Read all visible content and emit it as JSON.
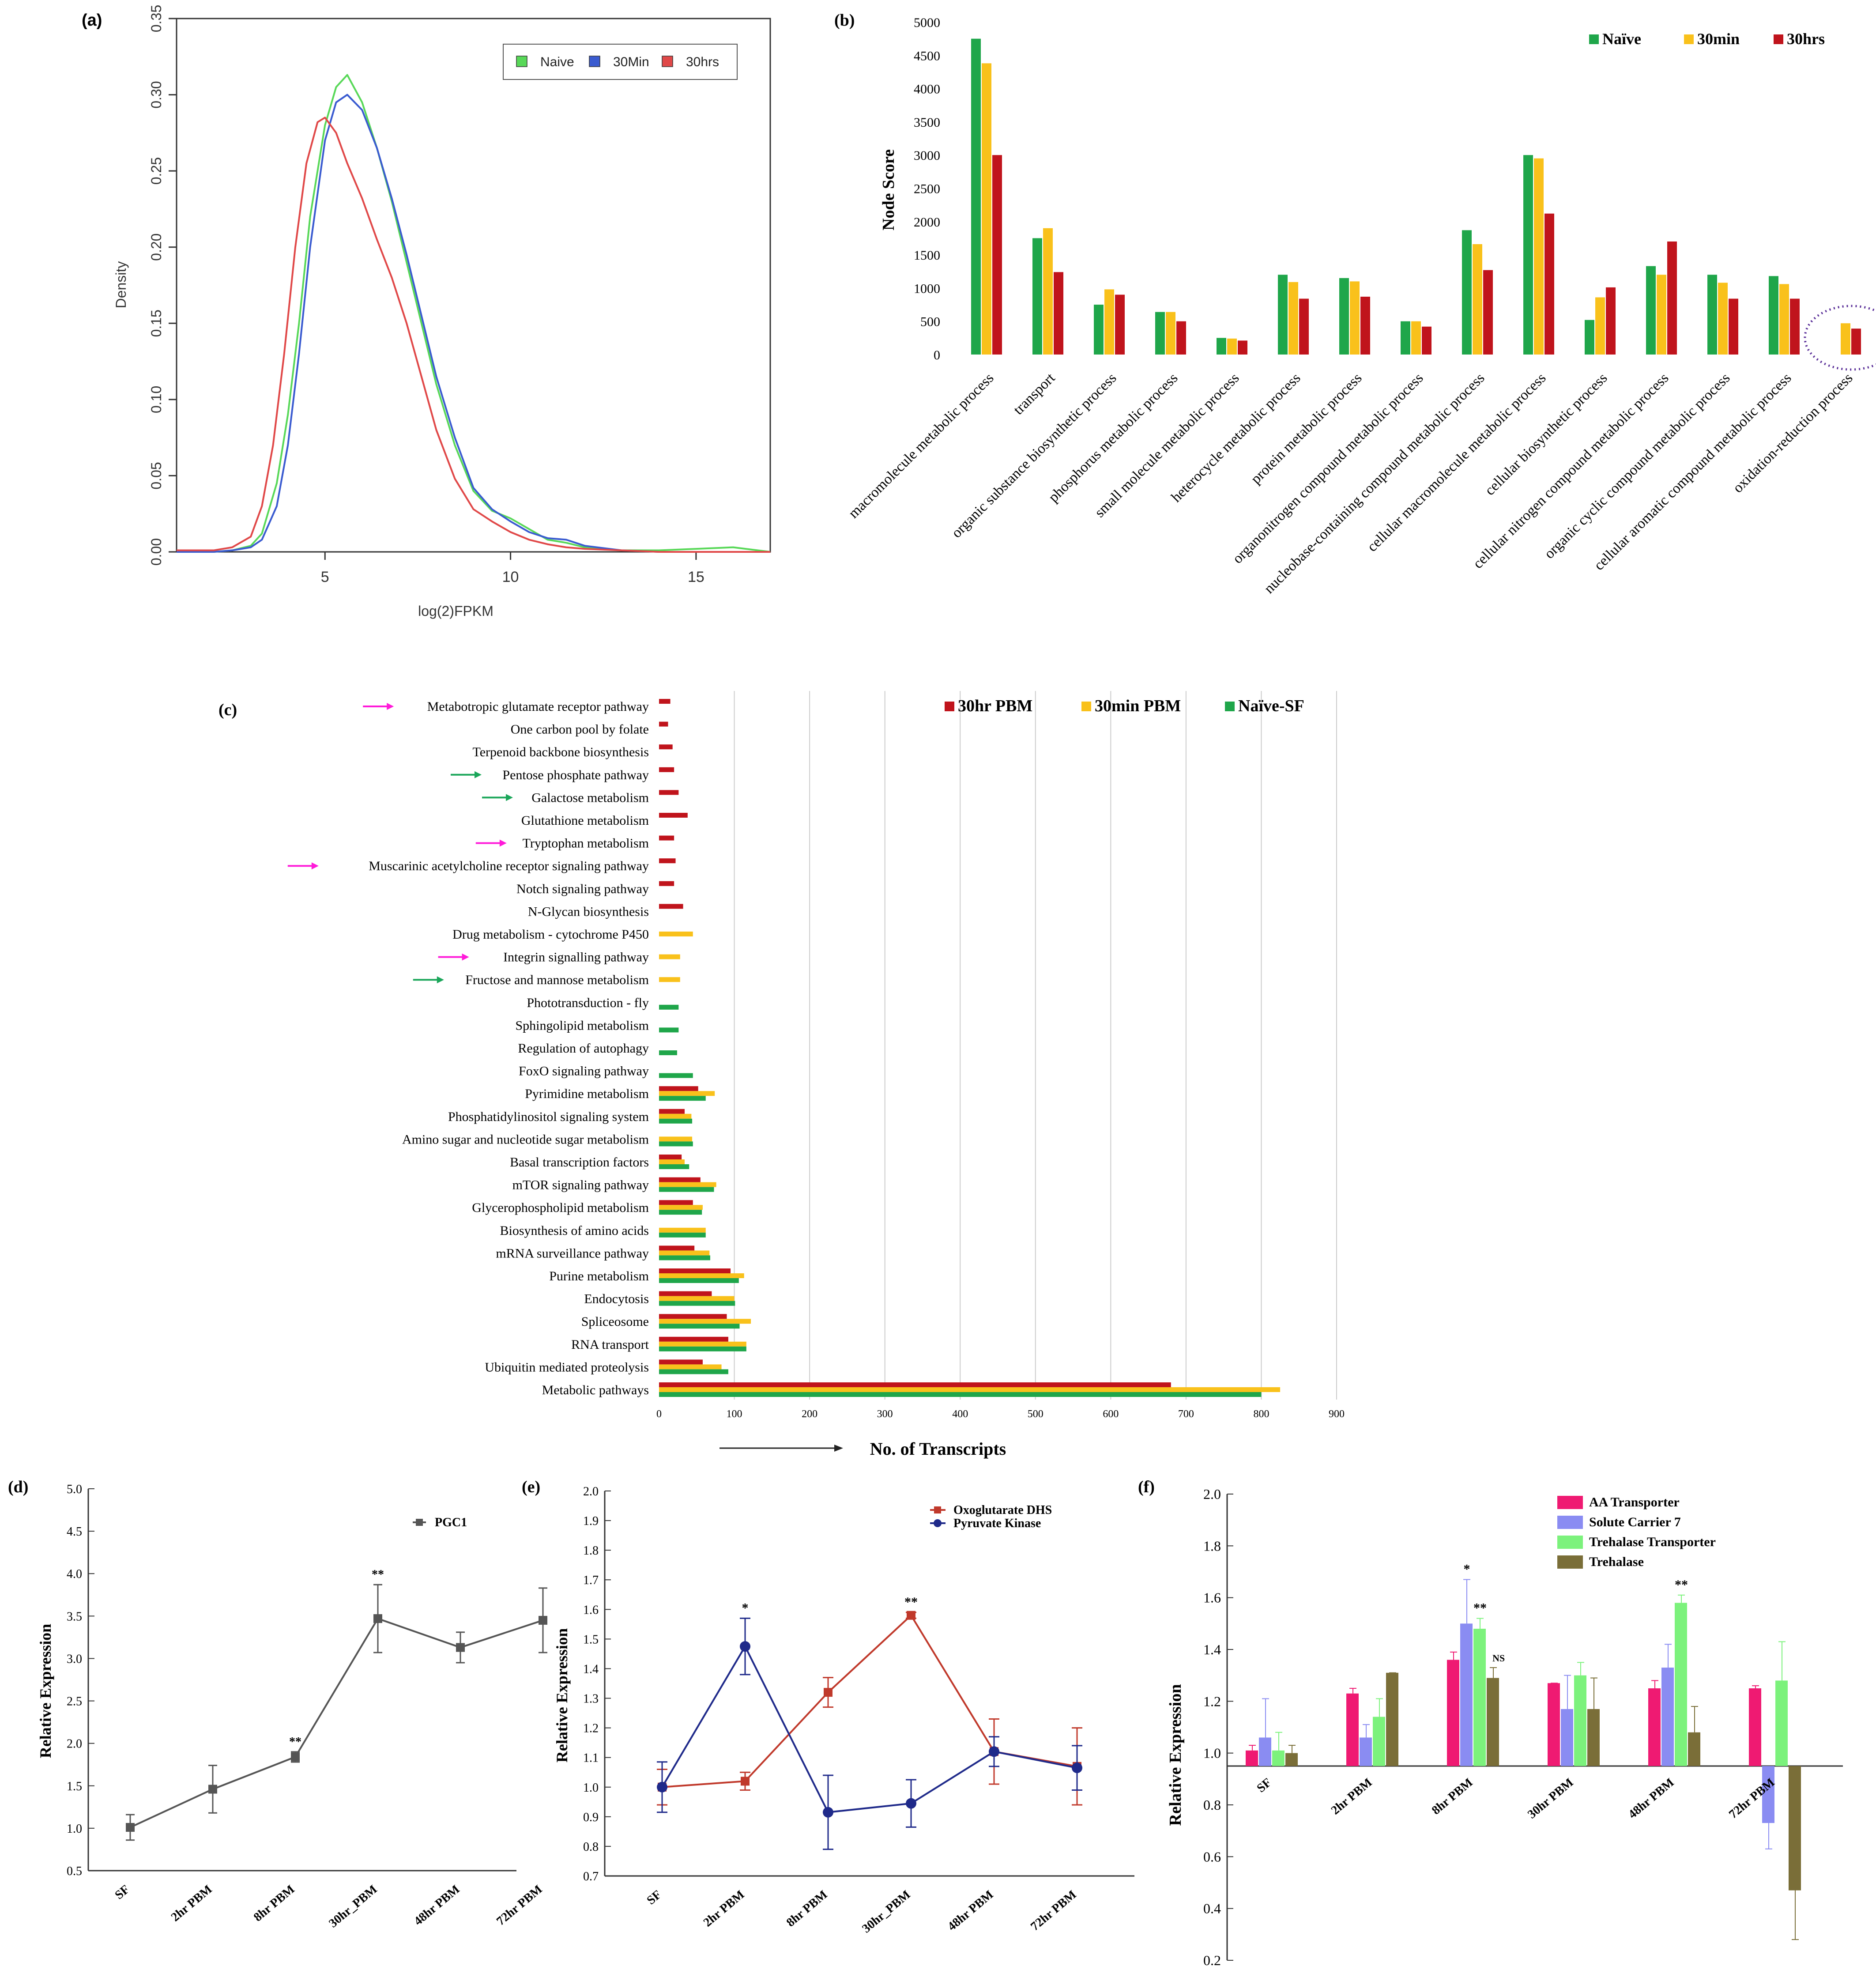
{
  "colors": {
    "green": "#1fa64a",
    "yellow": "#f9c11b",
    "red": "#c0141c",
    "ltgreen": "#58d858",
    "blue": "#3a5bd0",
    "dred": "#e04848",
    "grey": "#555555",
    "oxo": "#c0392b",
    "pyr": "#1f2a8a",
    "pink": "#ef1a72",
    "lav": "#8a8cf2",
    "lgreen": "#7cf27c",
    "olive": "#7a6e38",
    "magenta": "#ff1ad9",
    "arrowgreen": "#1ba65a"
  },
  "chart_data": [
    {
      "id": "a",
      "panel_label": "(a)",
      "type": "line",
      "xlabel": "log(2)FPKM",
      "ylabel": "Density",
      "xlim": [
        1,
        17
      ],
      "ylim": [
        0,
        0.35
      ],
      "xticks": [
        5,
        10,
        15
      ],
      "yticks": [
        "0.00",
        "0.05",
        "0.10",
        "0.15",
        "0.20",
        "0.25",
        "0.30",
        "0.35"
      ],
      "legend": [
        "Naive",
        "30Min",
        "30hrs"
      ],
      "series": [
        {
          "name": "Naive",
          "x": [
            1,
            2,
            2.5,
            3,
            3.3,
            3.7,
            4,
            4.3,
            4.6,
            5,
            5.3,
            5.6,
            6,
            6.4,
            6.8,
            7.2,
            7.6,
            8,
            8.5,
            9,
            9.5,
            10,
            10.5,
            11,
            11.5,
            12,
            13,
            14,
            15,
            16,
            17
          ],
          "y": [
            0,
            0,
            0.001,
            0.004,
            0.012,
            0.045,
            0.09,
            0.15,
            0.22,
            0.28,
            0.305,
            0.313,
            0.295,
            0.265,
            0.23,
            0.19,
            0.15,
            0.11,
            0.07,
            0.04,
            0.027,
            0.022,
            0.015,
            0.008,
            0.006,
            0.003,
            0.001,
            0.001,
            0.002,
            0.003,
            0
          ]
        },
        {
          "name": "30Min",
          "x": [
            1,
            2,
            2.5,
            3,
            3.3,
            3.7,
            4,
            4.3,
            4.6,
            5,
            5.3,
            5.6,
            6,
            6.4,
            6.8,
            7.2,
            7.6,
            8,
            8.5,
            9,
            9.5,
            10,
            10.5,
            11,
            11.5,
            12,
            13,
            14,
            15,
            16,
            17
          ],
          "y": [
            0,
            0,
            0.001,
            0.003,
            0.008,
            0.03,
            0.07,
            0.13,
            0.2,
            0.27,
            0.295,
            0.3,
            0.29,
            0.265,
            0.232,
            0.195,
            0.155,
            0.115,
            0.075,
            0.042,
            0.028,
            0.02,
            0.013,
            0.009,
            0.008,
            0.004,
            0.001,
            0,
            0,
            0,
            0
          ]
        },
        {
          "name": "30hrs",
          "x": [
            1,
            2,
            2.5,
            3,
            3.3,
            3.6,
            3.9,
            4.2,
            4.5,
            4.8,
            5,
            5.3,
            5.6,
            6,
            6.4,
            6.8,
            7.2,
            7.6,
            8,
            8.5,
            9,
            9.5,
            10,
            10.5,
            11,
            11.5,
            12,
            13,
            14,
            15,
            16,
            17
          ],
          "y": [
            0.001,
            0.001,
            0.003,
            0.01,
            0.03,
            0.07,
            0.13,
            0.2,
            0.255,
            0.282,
            0.285,
            0.275,
            0.255,
            0.232,
            0.205,
            0.18,
            0.15,
            0.115,
            0.08,
            0.048,
            0.028,
            0.02,
            0.013,
            0.008,
            0.005,
            0.003,
            0.002,
            0.001,
            0,
            0,
            0,
            0
          ]
        }
      ]
    },
    {
      "id": "b",
      "panel_label": "(b)",
      "type": "bar",
      "ylabel": "Node Score",
      "ylim": [
        0,
        5000
      ],
      "yticks": [
        0,
        500,
        1000,
        1500,
        2000,
        2500,
        3000,
        3500,
        4000,
        4500,
        5000
      ],
      "categories": [
        "macromolecule metabolic process",
        "transport",
        "organic substance biosynthetic process",
        "phosphorus metabolic process",
        "small molecule metabolic process",
        "heterocycle metabolic process",
        "protein metabolic process",
        "organonitrogen compound metabolic process",
        "nucleobase-containing compound metabolic process",
        "cellular macromolecule metabolic process",
        "cellular biosynthetic process",
        "cellular nitrogen compound metabolic process",
        "organic cyclic compound metabolic process",
        "cellular aromatic compound metabolic process",
        "oxidation-reduction process"
      ],
      "series": [
        {
          "name": "Naïve",
          "values": [
            4750,
            1750,
            750,
            640,
            250,
            1200,
            1150,
            500,
            1870,
            3000,
            520,
            1330,
            1200,
            1180,
            0
          ]
        },
        {
          "name": "30min",
          "values": [
            4380,
            1900,
            980,
            640,
            240,
            1090,
            1100,
            500,
            1660,
            2950,
            860,
            1200,
            1080,
            1060,
            470
          ]
        },
        {
          "name": "30hrs",
          "values": [
            3000,
            1240,
            900,
            500,
            210,
            840,
            870,
            420,
            1270,
            2120,
            1010,
            1700,
            840,
            840,
            390
          ]
        }
      ]
    },
    {
      "id": "c",
      "panel_label": "(c)",
      "type": "bar",
      "xlabel": "No. of Transcripts",
      "xlim": [
        0,
        900
      ],
      "xticks": [
        0,
        100,
        200,
        300,
        400,
        500,
        600,
        700,
        800,
        900
      ],
      "legend": [
        "30hr PBM",
        "30min PBM",
        "Naïve-SF"
      ],
      "categories": [
        "Metabotropic glutamate receptor pathway",
        "One carbon pool by folate",
        "Terpenoid backbone biosynthesis",
        "Pentose phosphate pathway",
        "Galactose metabolism",
        "Glutathione metabolism",
        "Tryptophan metabolism",
        "Muscarinic acetylcholine receptor signaling pathway",
        "Notch signaling pathway",
        "N-Glycan biosynthesis",
        "Drug metabolism - cytochrome P450",
        "Integrin signalling pathway",
        "Fructose and mannose metabolism",
        "Phototransduction - fly",
        "Sphingolipid metabolism",
        "Regulation of autophagy",
        "FoxO signaling pathway",
        "Pyrimidine metabolism",
        "Phosphatidylinositol signaling system",
        "Amino sugar and nucleotide sugar metabolism",
        "Basal transcription factors",
        "mTOR signaling pathway",
        "Glycerophospholipid metabolism",
        "Biosynthesis of amino acids",
        "mRNA surveillance pathway",
        "Purine metabolism",
        "Endocytosis",
        "Spliceosome",
        "RNA transport",
        "Ubiquitin mediated proteolysis",
        "Metabolic pathways"
      ],
      "arrows": [
        "magenta",
        null,
        null,
        "green",
        "green",
        null,
        "magenta",
        "magenta",
        null,
        null,
        null,
        "magenta",
        "green",
        null,
        null,
        null,
        null,
        null,
        null,
        null,
        null,
        null,
        null,
        null,
        null,
        null,
        null,
        null,
        null,
        null,
        null
      ],
      "series": [
        {
          "name": "30hr PBM",
          "values": [
            15,
            12,
            18,
            20,
            26,
            38,
            20,
            22,
            20,
            32,
            0,
            0,
            0,
            0,
            0,
            0,
            0,
            52,
            34,
            0,
            30,
            55,
            45,
            0,
            47,
            95,
            70,
            90,
            92,
            58,
            680
          ]
        },
        {
          "name": "30min PBM",
          "values": [
            0,
            0,
            0,
            0,
            0,
            0,
            0,
            0,
            0,
            0,
            45,
            28,
            28,
            0,
            0,
            0,
            0,
            74,
            43,
            44,
            34,
            76,
            58,
            62,
            67,
            113,
            100,
            122,
            116,
            83,
            825
          ]
        },
        {
          "name": "Naïve-SF",
          "values": [
            0,
            0,
            0,
            0,
            0,
            0,
            0,
            0,
            0,
            0,
            0,
            0,
            0,
            26,
            26,
            24,
            45,
            62,
            44,
            45,
            40,
            73,
            57,
            62,
            68,
            106,
            101,
            107,
            116,
            92,
            800
          ]
        }
      ]
    },
    {
      "id": "d",
      "panel_label": "(d)",
      "type": "line",
      "ylabel": "Relative Expression",
      "ylim": [
        0.5,
        5.0
      ],
      "yticks": [
        "0.5",
        "1.0",
        "1.5",
        "2.0",
        "2.5",
        "3.0",
        "3.5",
        "4.0",
        "4.5",
        "5.0"
      ],
      "categories": [
        "SF",
        "2hr PBM",
        "8hr PBM",
        "30hr_PBM",
        "48hr PBM",
        "72hr PBM"
      ],
      "legend": [
        "PGC1"
      ],
      "series": [
        {
          "name": "PGC1",
          "values": [
            1.01,
            1.46,
            1.84,
            3.47,
            3.13,
            3.45
          ],
          "err": [
            0.15,
            0.28,
            0.06,
            0.4,
            0.18,
            0.38
          ],
          "sig": [
            "",
            "",
            "**",
            "**",
            "",
            ""
          ]
        }
      ]
    },
    {
      "id": "e",
      "panel_label": "(e)",
      "type": "line",
      "ylabel": "Relative Expression",
      "ylim": [
        0.7,
        2.0
      ],
      "yticks": [
        "0.7",
        "0.8",
        "0.9",
        "1.0",
        "1.1",
        "1.2",
        "1.3",
        "1.4",
        "1.5",
        "1.6",
        "1.7",
        "1.8",
        "1.9",
        "2.0"
      ],
      "categories": [
        "SF",
        "2hr PBM",
        "8hr PBM",
        "30hr_PBM",
        "48hr PBM",
        "72hr PBM"
      ],
      "legend": [
        "Oxoglutarate DHS",
        "Pyruvate Kinase"
      ],
      "series": [
        {
          "name": "Oxoglutarate DHS",
          "values": [
            1.0,
            1.02,
            1.32,
            1.58,
            1.12,
            1.07
          ],
          "err": [
            0.06,
            0.03,
            0.05,
            0.01,
            0.11,
            0.13
          ],
          "sig": [
            "",
            "",
            "",
            "**",
            "",
            ""
          ]
        },
        {
          "name": "Pyruvate Kinase",
          "values": [
            1.0,
            1.475,
            0.915,
            0.945,
            1.12,
            1.065
          ],
          "err": [
            0.085,
            0.095,
            0.125,
            0.08,
            0.05,
            0.075
          ],
          "sig": [
            "",
            "*",
            "",
            "",
            "",
            ""
          ]
        }
      ]
    },
    {
      "id": "f",
      "panel_label": "(f)",
      "type": "bar",
      "ylabel": "Relative Expression",
      "ylim": [
        0.2,
        2.0
      ],
      "baseline": 0.95,
      "yticks": [
        "0.2",
        "0.4",
        "0.6",
        "0.8",
        "1.0",
        "1.2",
        "1.4",
        "1.6",
        "1.8",
        "2.0"
      ],
      "categories": [
        "SF",
        "2hr PBM",
        "8hr PBM",
        "30hr PBM",
        "48hr PBM",
        "72hr PBM"
      ],
      "legend": [
        "AA Transporter",
        "Solute Carrier 7",
        "Trehalase Transporter",
        "Trehalase"
      ],
      "series": [
        {
          "name": "AA Transporter",
          "values": [
            1.01,
            1.23,
            1.36,
            1.27,
            1.25,
            1.25
          ],
          "err": [
            0.02,
            0.02,
            0.03,
            0.0,
            0.03,
            0.01
          ]
        },
        {
          "name": "Solute Carrier 7",
          "values": [
            1.06,
            1.06,
            1.5,
            1.17,
            1.33,
            0.73
          ],
          "err": [
            0.15,
            0.05,
            0.17,
            0.13,
            0.09,
            0.1
          ]
        },
        {
          "name": "Trehalase Transporter",
          "values": [
            1.01,
            1.14,
            1.48,
            1.3,
            1.58,
            1.28
          ],
          "err": [
            0.07,
            0.07,
            0.04,
            0.05,
            0.03,
            0.15
          ]
        },
        {
          "name": "Trehalase",
          "values": [
            1.0,
            1.31,
            1.29,
            1.17,
            1.08,
            0.47
          ],
          "err": [
            0.03,
            0.0,
            0.04,
            0.12,
            0.1,
            0.19
          ]
        }
      ],
      "sig": [
        {
          "cat": 2,
          "series": 1,
          "text": "*"
        },
        {
          "cat": 2,
          "series": 2,
          "text": "**"
        },
        {
          "cat": 2,
          "series": 3,
          "text": "NS"
        },
        {
          "cat": 4,
          "series": 2,
          "text": "**"
        }
      ]
    }
  ]
}
